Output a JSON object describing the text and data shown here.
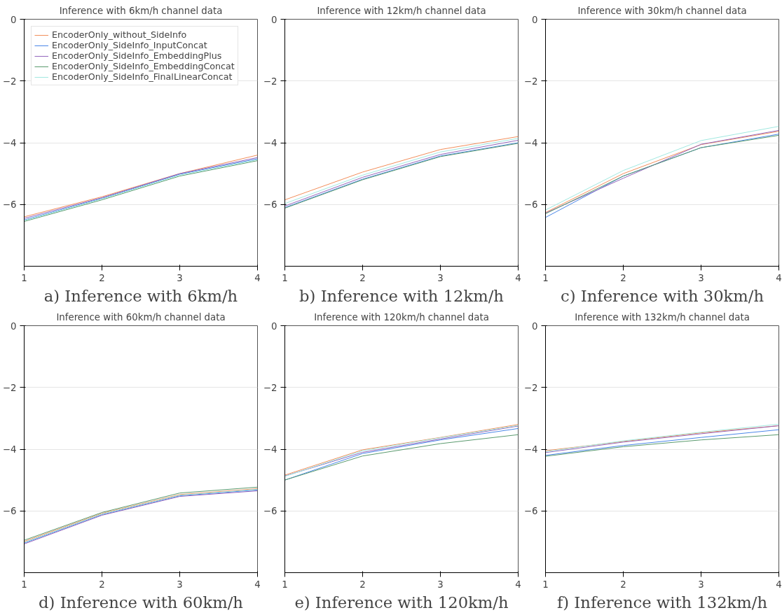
{
  "chart_data": [
    {
      "type": "line",
      "title": "Inference with 6km/h channel data",
      "xlabel": "a) Inference with 6km/h",
      "x": [
        1,
        2,
        3,
        4
      ],
      "xlim": [
        1,
        4
      ],
      "xticks": [
        1,
        2,
        3,
        4
      ],
      "ylim": [
        -8,
        0
      ],
      "yticks": [
        -6,
        -4,
        -2,
        0
      ],
      "grid": "y",
      "legend": "top left",
      "series": [
        {
          "name": "EncoderOnly_without_SideInfo",
          "color": "#f28e5b",
          "values": [
            -6.4,
            -5.75,
            -5.0,
            -4.4
          ]
        },
        {
          "name": "EncoderOnly_SideInfo_InputConcat",
          "color": "#4a86e8",
          "values": [
            -6.5,
            -5.8,
            -5.02,
            -4.52
          ]
        },
        {
          "name": "EncoderOnly_SideInfo_EmbeddingPlus",
          "color": "#9467bd",
          "values": [
            -6.45,
            -5.78,
            -5.0,
            -4.48
          ]
        },
        {
          "name": "EncoderOnly_SideInfo_EmbeddingConcat",
          "color": "#5a9a6e",
          "values": [
            -6.55,
            -5.85,
            -5.08,
            -4.58
          ]
        },
        {
          "name": "EncoderOnly_SideInfo_FinalLinearConcat",
          "color": "#a0e8e0",
          "values": [
            -6.52,
            -5.82,
            -5.05,
            -4.55
          ]
        }
      ]
    },
    {
      "type": "line",
      "title": "Inference with 12km/h channel data",
      "xlabel": "b) Inference with 12km/h",
      "x": [
        1,
        2,
        3,
        4
      ],
      "xlim": [
        1,
        4
      ],
      "xticks": [
        1,
        2,
        3,
        4
      ],
      "ylim": [
        -8,
        0
      ],
      "yticks": [
        -6,
        -4,
        -2,
        0
      ],
      "grid": "y",
      "series": [
        {
          "color": "#f28e5b",
          "values": [
            -5.85,
            -4.95,
            -4.22,
            -3.8
          ]
        },
        {
          "color": "#4a86e8",
          "values": [
            -6.1,
            -5.18,
            -4.43,
            -4.0
          ]
        },
        {
          "color": "#9467bd",
          "values": [
            -6.05,
            -5.12,
            -4.38,
            -3.92
          ]
        },
        {
          "color": "#5a9a6e",
          "values": [
            -6.12,
            -5.2,
            -4.45,
            -4.02
          ]
        },
        {
          "color": "#a0e8e0",
          "values": [
            -5.97,
            -5.05,
            -4.3,
            -3.86
          ]
        }
      ]
    },
    {
      "type": "line",
      "title": "Inference with 30km/h channel data",
      "xlabel": "c) Inference with 30km/h",
      "x": [
        1,
        2,
        3,
        4
      ],
      "xlim": [
        1,
        4
      ],
      "xticks": [
        1,
        2,
        3,
        4
      ],
      "ylim": [
        -8,
        0
      ],
      "yticks": [
        -6,
        -4,
        -2,
        0
      ],
      "grid": "y",
      "series": [
        {
          "color": "#f28e5b",
          "values": [
            -6.26,
            -5.0,
            -4.06,
            -3.63
          ]
        },
        {
          "color": "#4a86e8",
          "values": [
            -6.42,
            -5.08,
            -4.16,
            -3.72
          ]
        },
        {
          "color": "#9467bd",
          "values": [
            -6.28,
            -5.15,
            -4.05,
            -3.6
          ]
        },
        {
          "color": "#5a9a6e",
          "values": [
            -6.3,
            -5.08,
            -4.16,
            -3.76
          ]
        },
        {
          "color": "#a0e8e0",
          "values": [
            -6.18,
            -4.9,
            -3.93,
            -3.47
          ]
        }
      ]
    },
    {
      "type": "line",
      "title": "Inference with 60km/h channel data",
      "xlabel": "d) Inference with 60km/h",
      "x": [
        1,
        2,
        3,
        4
      ],
      "xlim": [
        1,
        4
      ],
      "xticks": [
        1,
        2,
        3,
        4
      ],
      "ylim": [
        -8,
        0
      ],
      "yticks": [
        -6,
        -4,
        -2,
        0
      ],
      "grid": "y",
      "series": [
        {
          "color": "#f28e5b",
          "values": [
            -6.99,
            -6.08,
            -5.47,
            -5.28
          ]
        },
        {
          "color": "#4a86e8",
          "values": [
            -7.04,
            -6.12,
            -5.51,
            -5.32
          ]
        },
        {
          "color": "#9467bd",
          "values": [
            -7.07,
            -6.14,
            -5.53,
            -5.35
          ]
        },
        {
          "color": "#5a9a6e",
          "values": [
            -6.95,
            -6.05,
            -5.42,
            -5.23
          ]
        },
        {
          "color": "#a0e8e0",
          "values": [
            -7.02,
            -6.1,
            -5.49,
            -5.3
          ]
        }
      ]
    },
    {
      "type": "line",
      "title": "Inference with 120km/h channel data",
      "xlabel": "e) Inference with 120km/h",
      "x": [
        1,
        2,
        3,
        4
      ],
      "xlim": [
        1,
        4
      ],
      "xticks": [
        1,
        2,
        3,
        4
      ],
      "ylim": [
        -8,
        0
      ],
      "yticks": [
        -6,
        -4,
        -2,
        0
      ],
      "grid": "y",
      "series": [
        {
          "color": "#f28e5b",
          "values": [
            -4.84,
            -4.02,
            -3.62,
            -3.2
          ]
        },
        {
          "color": "#4a86e8",
          "values": [
            -5.0,
            -4.14,
            -3.7,
            -3.33
          ]
        },
        {
          "color": "#9467bd",
          "values": [
            -4.87,
            -4.1,
            -3.67,
            -3.25
          ]
        },
        {
          "color": "#5a9a6e",
          "values": [
            -5.0,
            -4.22,
            -3.82,
            -3.53
          ]
        },
        {
          "color": "#a0e8e0",
          "values": [
            -4.88,
            -4.05,
            -3.63,
            -3.23
          ]
        }
      ]
    },
    {
      "type": "line",
      "title": "Inference with 132km/h channel data",
      "xlabel": "f) Inference with 132km/h",
      "x": [
        1,
        2,
        3,
        4
      ],
      "xlim": [
        1,
        4
      ],
      "xticks": [
        1,
        2,
        3,
        4
      ],
      "ylim": [
        -8,
        0
      ],
      "yticks": [
        -6,
        -4,
        -2,
        0
      ],
      "grid": "y",
      "series": [
        {
          "color": "#f28e5b",
          "values": [
            -4.05,
            -3.75,
            -3.47,
            -3.24
          ]
        },
        {
          "color": "#4a86e8",
          "values": [
            -4.2,
            -3.88,
            -3.62,
            -3.37
          ]
        },
        {
          "color": "#9467bd",
          "values": [
            -4.11,
            -3.77,
            -3.5,
            -3.24
          ]
        },
        {
          "color": "#5a9a6e",
          "values": [
            -4.23,
            -3.92,
            -3.7,
            -3.53
          ]
        },
        {
          "color": "#a0e8e0",
          "values": [
            -4.08,
            -3.73,
            -3.45,
            -3.19
          ]
        }
      ]
    }
  ]
}
